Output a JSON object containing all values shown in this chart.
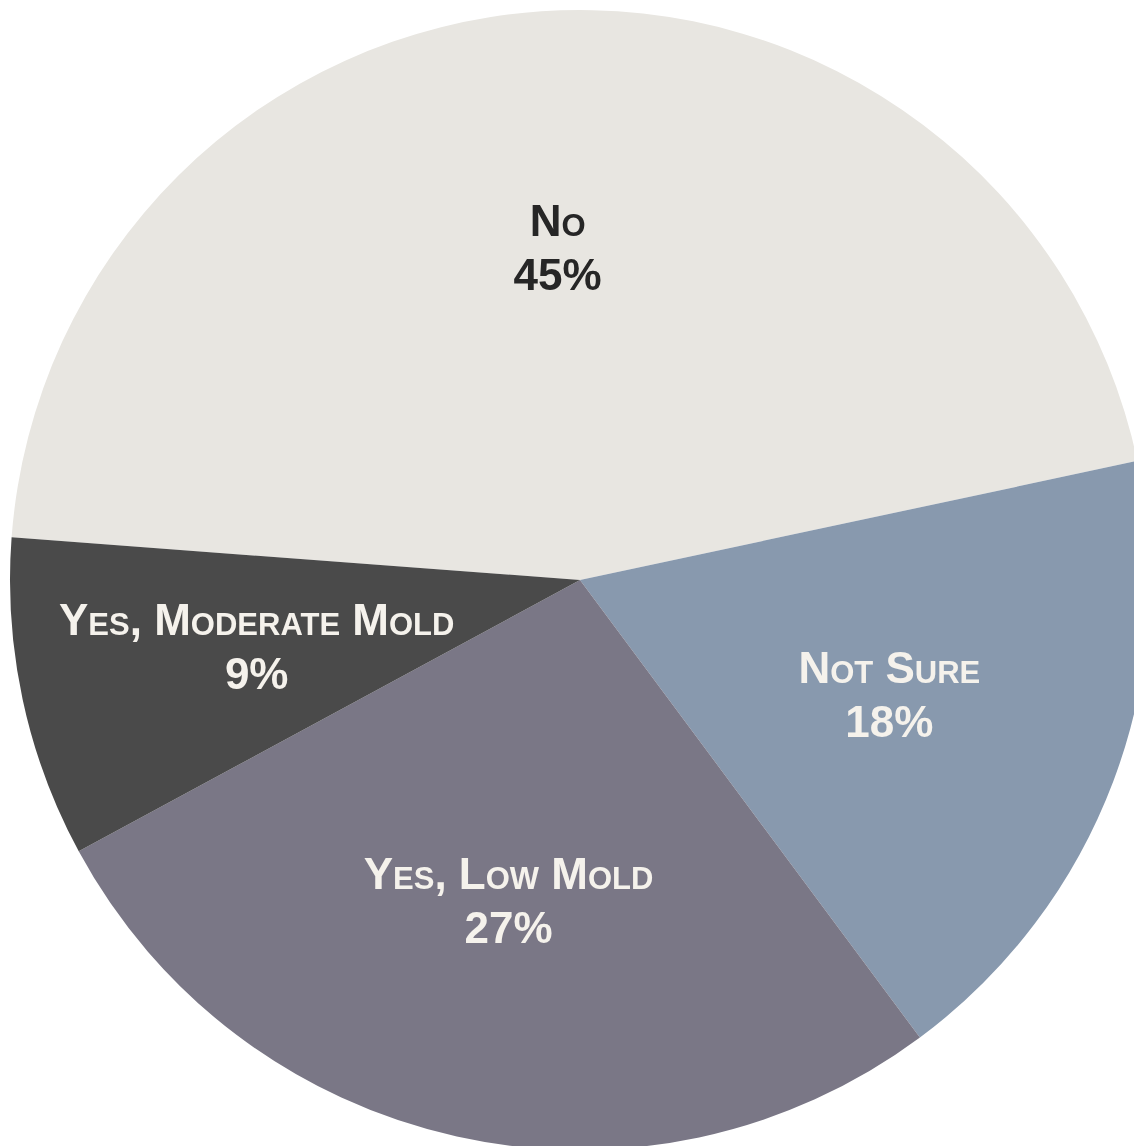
{
  "chart_data": {
    "type": "pie",
    "categories": [
      "No",
      "Not Sure",
      "Yes, Low Mold",
      "Yes, Moderate Mold"
    ],
    "values": [
      45,
      18,
      27,
      9
    ],
    "value_labels": [
      "45%",
      "18%",
      "27%",
      "9%"
    ],
    "colors": [
      "#e8e6e1",
      "#8899ae",
      "#7a7786",
      "#4a4a4a"
    ],
    "legend": false
  }
}
